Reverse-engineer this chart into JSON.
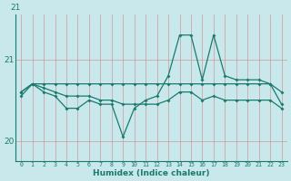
{
  "xlabel": "Humidex (Indice chaleur)",
  "bg_color": "#c8e8ec",
  "line_color": "#1a7a6e",
  "x_values": [
    0,
    1,
    2,
    3,
    4,
    5,
    6,
    7,
    8,
    9,
    10,
    11,
    12,
    13,
    14,
    15,
    16,
    17,
    18,
    19,
    20,
    21,
    22,
    23
  ],
  "line_flat": [
    20.6,
    20.7,
    20.7,
    20.7,
    20.7,
    20.7,
    20.7,
    20.7,
    20.7,
    20.7,
    20.7,
    20.7,
    20.7,
    20.7,
    20.7,
    20.7,
    20.7,
    20.7,
    20.7,
    20.7,
    20.7,
    20.7,
    20.7,
    20.6
  ],
  "line_decline": [
    20.6,
    20.7,
    20.65,
    20.6,
    20.55,
    20.55,
    20.55,
    20.5,
    20.5,
    20.45,
    20.45,
    20.45,
    20.45,
    20.5,
    20.6,
    20.6,
    20.5,
    20.55,
    20.5,
    20.5,
    20.5,
    20.5,
    20.5,
    20.4
  ],
  "line_var": [
    20.55,
    20.7,
    20.6,
    20.55,
    20.4,
    20.4,
    20.5,
    20.45,
    20.45,
    20.05,
    20.4,
    20.5,
    20.55,
    20.8,
    21.3,
    21.3,
    20.75,
    21.3,
    20.8,
    20.75,
    20.75,
    20.75,
    20.7,
    20.45
  ],
  "ylim_min": 19.75,
  "ylim_max": 21.55,
  "ytick_pos": [
    20,
    21
  ],
  "ytick_labels": [
    "20",
    "21"
  ],
  "figw": 3.2,
  "figh": 2.0,
  "dpi": 100
}
